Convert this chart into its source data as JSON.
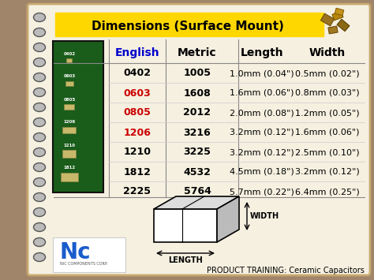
{
  "title": "Dimensions (Surface Mount)",
  "title_bg": "#FFD700",
  "title_color": "#000000",
  "bg_color": "#F5F0E0",
  "outer_bg": "#A0856A",
  "col_headers": [
    "English",
    "Metric",
    "Length",
    "Width"
  ],
  "header_colors": [
    "#0000CC",
    "#000000",
    "#000000",
    "#000000"
  ],
  "rows": [
    {
      "english": "0402",
      "metric": "1005",
      "length": "1.0mm (0.04\")",
      "width": "0.5mm (0.02\")",
      "color": "#000000"
    },
    {
      "english": "0603",
      "metric": "1608",
      "length": "1.6mm (0.06\")",
      "width": "0.8mm (0.03\")",
      "color": "#CC0000"
    },
    {
      "english": "0805",
      "metric": "2012",
      "length": "2.0mm (0.08\")",
      "width": "1.2mm (0.05\")",
      "color": "#CC0000"
    },
    {
      "english": "1206",
      "metric": "3216",
      "length": "3.2mm (0.12\")",
      "width": "1.6mm (0.06\")",
      "color": "#CC0000"
    },
    {
      "english": "1210",
      "metric": "3225",
      "length": "3.2mm (0.12\")",
      "width": "2.5mm (0.10\")",
      "color": "#000000"
    },
    {
      "english": "1812",
      "metric": "4532",
      "length": "4.5mm (0.18\")",
      "width": "3.2mm (0.12\")",
      "color": "#000000"
    },
    {
      "english": "2225",
      "metric": "5764",
      "length": "5.7mm (0.22\")",
      "width": "6.4mm (0.25\")",
      "color": "#000000"
    }
  ],
  "footer_text": "PRODUCT TRAINING: Ceramic Capacitors",
  "spiral_color": "#888888",
  "line_color": "#888888"
}
